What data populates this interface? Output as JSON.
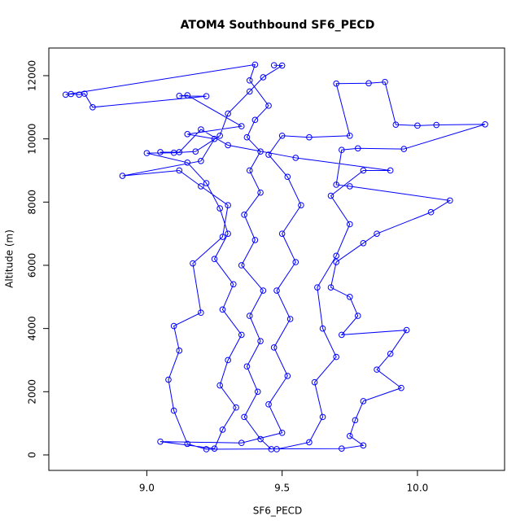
{
  "chart_data": {
    "type": "line",
    "title": "ATOM4 Southbound SF6_PECD",
    "x_label": "SF6_PECD",
    "y_label": "Altitude (m)",
    "color": "#0000ff",
    "xlim": [
      8.638,
      10.322
    ],
    "ylim": [
      -490,
      12875
    ],
    "xticks": [
      {
        "value": 9,
        "label": "9.0"
      },
      9.5,
      {
        "value": 10,
        "label": "10.0"
      }
    ],
    "yticks": [
      0,
      2000,
      4000,
      6000,
      8000,
      10000,
      12000
    ],
    "x": [
      9.47,
      9.5,
      9.43,
      9.38,
      9.3,
      9.27,
      9.18,
      9.1,
      9.0,
      9.15,
      9.22,
      9.27,
      9.3,
      9.25,
      9.32,
      9.28,
      9.35,
      9.3,
      9.27,
      9.33,
      9.28,
      9.25,
      9.05,
      9.35,
      9.5,
      9.45,
      9.52,
      9.47,
      9.53,
      9.48,
      9.55,
      9.5,
      9.57,
      9.52,
      9.45,
      9.5,
      9.6,
      9.75,
      9.7,
      9.82,
      9.88,
      9.92,
      10.0,
      10.07,
      10.25,
      9.95,
      9.78,
      9.72,
      9.7,
      9.75,
      10.12,
      10.05,
      9.85,
      9.8,
      9.7,
      9.68,
      9.75,
      9.78,
      9.72,
      9.96,
      9.9,
      9.85,
      9.94,
      9.8,
      9.77,
      9.75,
      9.8,
      9.72,
      9.22,
      9.15,
      9.1,
      9.08,
      9.12,
      9.1,
      9.2,
      9.17,
      9.28,
      9.3,
      9.2,
      9.12,
      8.91,
      9.2,
      9.25,
      9.15,
      9.35,
      9.15,
      9.12,
      9.22,
      8.8,
      8.77,
      8.75,
      8.72,
      8.7,
      9.4,
      9.38,
      9.45,
      9.4,
      9.37,
      9.42,
      9.38,
      9.42,
      9.36,
      9.4,
      9.35,
      9.43,
      9.38,
      9.42,
      9.37,
      9.41,
      9.36,
      9.42,
      9.46,
      9.48,
      9.6,
      9.65,
      9.62,
      9.7,
      9.65,
      9.63,
      9.7,
      9.75,
      9.68,
      9.8,
      9.9,
      9.55,
      9.3,
      9.2,
      9.12,
      9.05
    ],
    "values": [
      12330,
      12320,
      11950,
      11500,
      10800,
      10100,
      9600,
      9560,
      9550,
      9250,
      8600,
      7800,
      7000,
      6200,
      5400,
      4600,
      3800,
      3000,
      2200,
      1500,
      800,
      200,
      420,
      380,
      700,
      1600,
      2500,
      3400,
      4300,
      5200,
      6100,
      7000,
      7900,
      8800,
      9500,
      10100,
      10050,
      10100,
      11750,
      11760,
      11800,
      10450,
      10420,
      10440,
      10460,
      9680,
      9700,
      9650,
      8550,
      8500,
      8050,
      7680,
      7000,
      6700,
      6100,
      5300,
      5000,
      4400,
      3800,
      3950,
      3200,
      2700,
      2120,
      1700,
      1100,
      600,
      300,
      200,
      180,
      350,
      1400,
      2380,
      3300,
      4080,
      4500,
      6060,
      6900,
      7900,
      8500,
      9000,
      8830,
      9300,
      10000,
      10150,
      10400,
      11380,
      11360,
      11350,
      11000,
      11430,
      11400,
      11420,
      11400,
      12350,
      11850,
      11050,
      10600,
      10050,
      9600,
      9000,
      8300,
      7600,
      6800,
      6000,
      5200,
      4400,
      3600,
      2800,
      2000,
      1200,
      500,
      180,
      180,
      400,
      1200,
      2300,
      3100,
      4000,
      5300,
      6300,
      7300,
      8200,
      9000,
      9000,
      9400,
      9800,
      10300,
      9580,
      9580
    ]
  }
}
